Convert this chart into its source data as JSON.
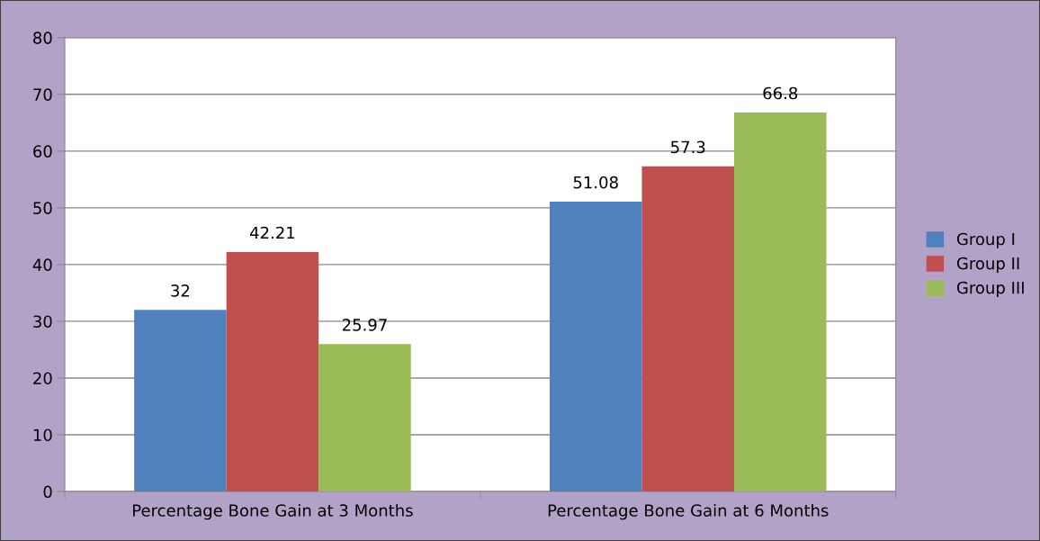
{
  "chart_data": {
    "type": "bar",
    "categories": [
      "Percentage Bone Gain at 3 Months",
      "Percentage Bone Gain at 6 Months"
    ],
    "series": [
      {
        "name": "Group I",
        "color": "#4f81bd",
        "values": [
          32,
          51.08
        ]
      },
      {
        "name": "Group II",
        "color": "#c0504d",
        "values": [
          42.21,
          57.3
        ]
      },
      {
        "name": "Group III",
        "color": "#9bbb59",
        "values": [
          25.97,
          66.8
        ]
      }
    ],
    "ylim": [
      0,
      80
    ],
    "yticks": [
      0,
      10,
      20,
      30,
      40,
      50,
      60,
      70,
      80
    ],
    "grid": "y",
    "legend": "right",
    "data_labels": true
  }
}
